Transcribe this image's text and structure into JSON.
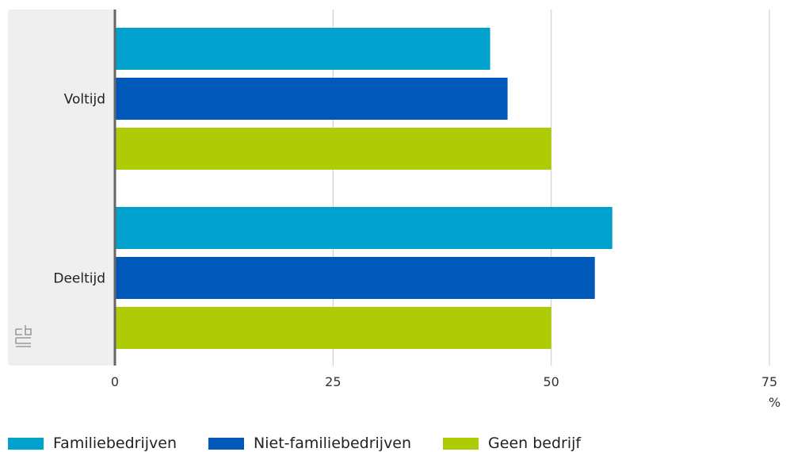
{
  "chart_data": {
    "type": "bar",
    "orientation": "horizontal",
    "categories": [
      "Voltijd",
      "Deeltijd"
    ],
    "series": [
      {
        "name": "Familiebedrijven",
        "color": "#00a1cd",
        "values": [
          43,
          57
        ]
      },
      {
        "name": "Niet-familiebedrijven",
        "color": "#0058b8",
        "values": [
          45,
          55
        ]
      },
      {
        "name": "Geen bedrijf",
        "color": "#afcb05",
        "values": [
          50,
          50
        ]
      }
    ],
    "xlim": [
      0,
      75
    ],
    "xticks": [
      0,
      25,
      50,
      75
    ],
    "xunit": "%",
    "grid": true,
    "legend": "bottom-left"
  },
  "logo": {
    "icon": "cbs-logo-icon",
    "text": "cbs"
  }
}
